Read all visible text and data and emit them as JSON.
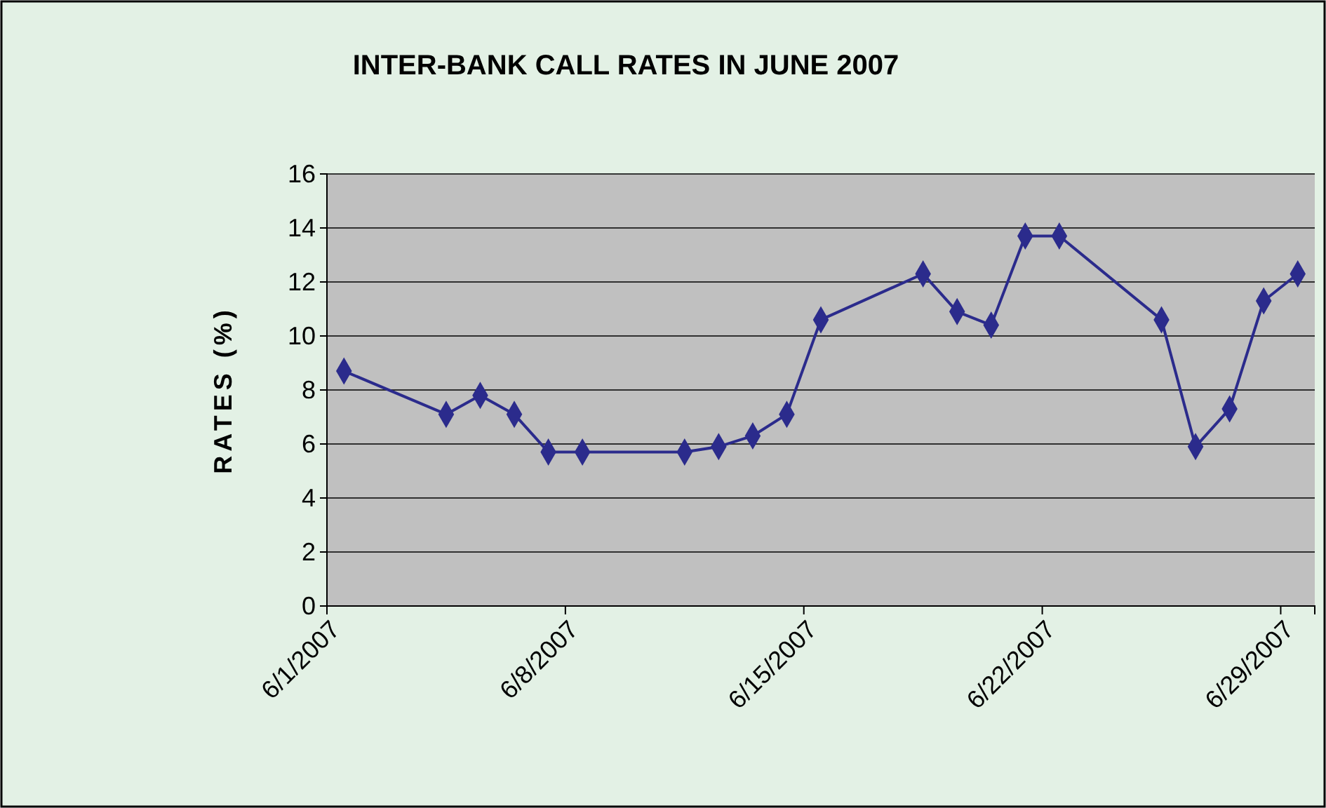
{
  "chart_data": {
    "type": "line",
    "title": "INTER-BANK CALL RATES IN JUNE 2007",
    "ylabel": "RATES (%)",
    "x": [
      "2007-06-01T12:00",
      "2007-06-04T12:00",
      "2007-06-05T12:00",
      "2007-06-06T12:00",
      "2007-06-07T12:00",
      "2007-06-08T12:00",
      "2007-06-11T12:00",
      "2007-06-12T12:00",
      "2007-06-13T12:00",
      "2007-06-14T12:00",
      "2007-06-15T12:00",
      "2007-06-18T12:00",
      "2007-06-19T12:00",
      "2007-06-20T12:00",
      "2007-06-21T12:00",
      "2007-06-22T12:00",
      "2007-06-25T12:00",
      "2007-06-26T12:00",
      "2007-06-27T12:00",
      "2007-06-28T12:00",
      "2007-06-29T12:00"
    ],
    "series": [
      {
        "color": "#2b2b8c",
        "values": [
          8.7,
          7.1,
          7.8,
          7.1,
          5.7,
          5.7,
          5.7,
          5.9,
          6.3,
          7.1,
          10.6,
          12.3,
          10.9,
          10.4,
          13.7,
          13.7,
          10.6,
          5.9,
          7.3,
          11.3,
          12.3
        ]
      }
    ],
    "xlim": [
      "2007-06-01",
      "2007-06-30"
    ],
    "xticks": [
      {
        "value": "2007-06-01",
        "label": "6/1/2007"
      },
      {
        "value": "2007-06-08",
        "label": "6/8/2007"
      },
      {
        "value": "2007-06-15",
        "label": "6/15/2007"
      },
      {
        "value": "2007-06-22",
        "label": "6/22/2007"
      },
      {
        "value": "2007-06-29",
        "label": "6/29/2007"
      }
    ],
    "ylim": [
      0,
      16
    ],
    "yticks": [
      0,
      2,
      4,
      6,
      8,
      10,
      12,
      14,
      16
    ],
    "grid": "y",
    "marker": "diamond",
    "line_style": "solid"
  }
}
